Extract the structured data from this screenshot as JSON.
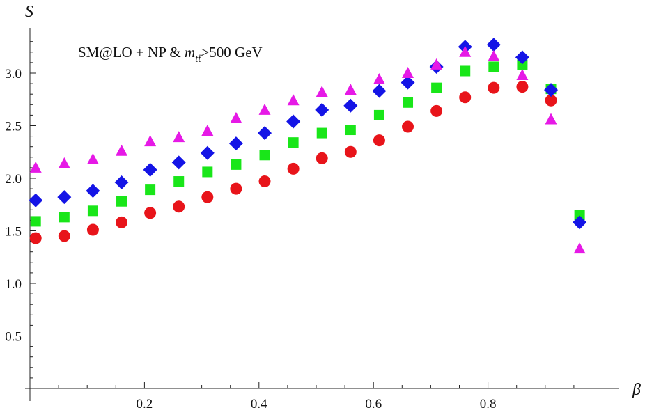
{
  "chart_data": {
    "type": "scatter",
    "xlabel": "β",
    "ylabel": "S",
    "annotation": {
      "prefix": "SM@LO + NP & ",
      "var": "m",
      "sub": "tt̄",
      "suffix": ">500 GeV"
    },
    "xlim": [
      0.0,
      0.975
    ],
    "ylim": [
      0.0,
      3.35
    ],
    "x_ticks": [
      0.2,
      0.4,
      0.6,
      0.8
    ],
    "x_tick_labels": [
      "0.2",
      "0.4",
      "0.6",
      "0.8"
    ],
    "y_ticks": [
      0.5,
      1.0,
      1.5,
      2.0,
      2.5,
      3.0
    ],
    "y_tick_labels": [
      "0.5",
      "1.0",
      "1.5",
      "2.0",
      "2.5",
      "3.0"
    ],
    "grid": false,
    "x": [
      0.01,
      0.06,
      0.11,
      0.16,
      0.21,
      0.26,
      0.31,
      0.36,
      0.41,
      0.46,
      0.51,
      0.56,
      0.61,
      0.66,
      0.71,
      0.76,
      0.81,
      0.86,
      0.91,
      0.96
    ],
    "series": [
      {
        "marker": "circle",
        "color": "#e8141a",
        "values": [
          1.43,
          1.45,
          1.51,
          1.58,
          1.67,
          1.73,
          1.82,
          1.9,
          1.97,
          2.09,
          2.19,
          2.25,
          2.36,
          2.49,
          2.64,
          2.77,
          2.86,
          2.87,
          2.74,
          null
        ]
      },
      {
        "marker": "square",
        "color": "#19e619",
        "values": [
          1.59,
          1.63,
          1.69,
          1.78,
          1.89,
          1.97,
          2.06,
          2.13,
          2.22,
          2.34,
          2.43,
          2.46,
          2.6,
          2.72,
          2.86,
          3.02,
          3.06,
          3.08,
          2.85,
          1.65
        ]
      },
      {
        "marker": "diamond",
        "color": "#1414e6",
        "values": [
          1.79,
          1.82,
          1.88,
          1.96,
          2.08,
          2.15,
          2.24,
          2.33,
          2.43,
          2.54,
          2.65,
          2.69,
          2.83,
          2.91,
          3.06,
          3.25,
          3.27,
          3.15,
          2.84,
          1.58
        ]
      },
      {
        "marker": "triangle",
        "color": "#e619e6",
        "values": [
          2.1,
          2.14,
          2.18,
          2.26,
          2.35,
          2.39,
          2.45,
          2.57,
          2.65,
          2.74,
          2.82,
          2.84,
          2.94,
          3.0,
          3.08,
          3.2,
          3.16,
          2.98,
          2.56,
          1.33
        ]
      }
    ]
  }
}
